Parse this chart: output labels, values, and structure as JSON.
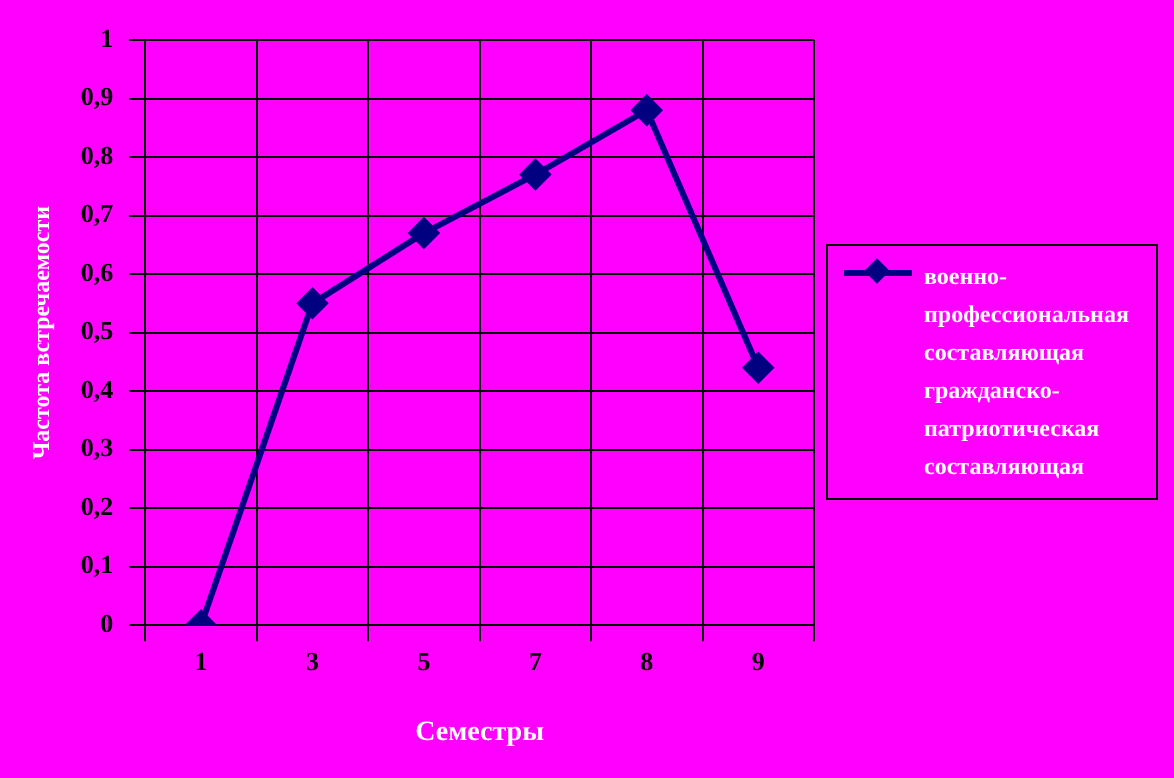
{
  "chart_data": {
    "type": "line",
    "xlabel": "Семестры",
    "ylabel": "Частота встречаемости",
    "categories": [
      "1",
      "3",
      "5",
      "7",
      "8",
      "9"
    ],
    "series": [
      {
        "name": "военно-профессиональная составляющая гражданско-патриотическая составляющая",
        "color": "#000080",
        "values": [
          0,
          0.55,
          0.67,
          0.77,
          0.88,
          0.44
        ]
      }
    ],
    "ylim": [
      0,
      1
    ],
    "yticks": [
      {
        "value": 0,
        "label": "0"
      },
      {
        "value": 0.1,
        "label": "0,1"
      },
      {
        "value": 0.2,
        "label": "0,2"
      },
      {
        "value": 0.3,
        "label": "0,3"
      },
      {
        "value": 0.4,
        "label": "0,4"
      },
      {
        "value": 0.5,
        "label": "0,5"
      },
      {
        "value": 0.6,
        "label": "0,6"
      },
      {
        "value": 0.7,
        "label": "0,7"
      },
      {
        "value": 0.8,
        "label": "0,8"
      },
      {
        "value": 0.9,
        "label": "0,9"
      },
      {
        "value": 1,
        "label": "1"
      }
    ],
    "grid": true,
    "legend": "right",
    "marker": "diamond",
    "line_style": "solid"
  }
}
